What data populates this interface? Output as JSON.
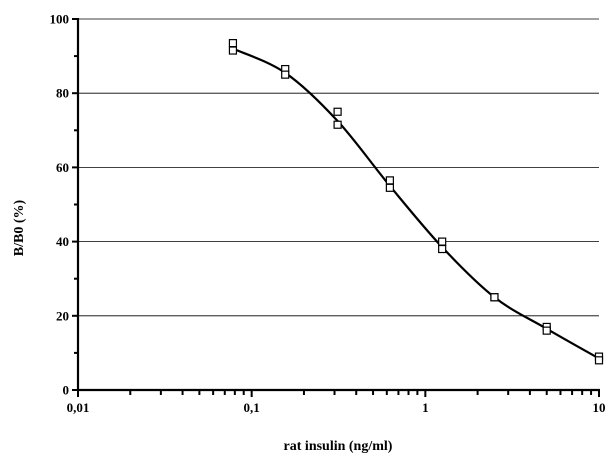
{
  "chart_data": {
    "type": "scatter",
    "title": "",
    "xlabel": "rat insulin (ng/ml)",
    "ylabel": "B/B0 (%)",
    "x_scale": "log",
    "xlim": [
      0.01,
      10
    ],
    "ylim": [
      0,
      100
    ],
    "x_tick_labels": [
      {
        "value": 0.01,
        "label": "0,01"
      },
      {
        "value": 0.1,
        "label": "0,1"
      },
      {
        "value": 1,
        "label": "1"
      },
      {
        "value": 10,
        "label": "10"
      }
    ],
    "y_tick_labels": [
      {
        "value": 0,
        "label": "0"
      },
      {
        "value": 20,
        "label": "20"
      },
      {
        "value": 40,
        "label": "40"
      },
      {
        "value": 60,
        "label": "60"
      },
      {
        "value": 80,
        "label": "80"
      },
      {
        "value": 100,
        "label": "100"
      }
    ],
    "grid": "horizontal major lines",
    "legend": "none",
    "series": [
      {
        "marker": "open-square",
        "line": "smooth curve through means",
        "color": "#000000",
        "points": [
          {
            "x": 0.078,
            "y": 93.5
          },
          {
            "x": 0.078,
            "y": 91.5
          },
          {
            "x": 0.156,
            "y": 86.5
          },
          {
            "x": 0.156,
            "y": 85.0
          },
          {
            "x": 0.3125,
            "y": 75.0
          },
          {
            "x": 0.3125,
            "y": 71.5
          },
          {
            "x": 0.625,
            "y": 56.5
          },
          {
            "x": 0.625,
            "y": 54.5
          },
          {
            "x": 1.25,
            "y": 40.0
          },
          {
            "x": 1.25,
            "y": 38.0
          },
          {
            "x": 2.5,
            "y": 25.0
          },
          {
            "x": 2.5,
            "y": 25.0
          },
          {
            "x": 5.0,
            "y": 17.0
          },
          {
            "x": 5.0,
            "y": 16.0
          },
          {
            "x": 10.0,
            "y": 9.0
          },
          {
            "x": 10.0,
            "y": 8.0
          }
        ],
        "curve": [
          {
            "x": 0.078,
            "y": 92.0
          },
          {
            "x": 0.156,
            "y": 85.5
          },
          {
            "x": 0.3125,
            "y": 72.5
          },
          {
            "x": 0.625,
            "y": 55.0
          },
          {
            "x": 1.25,
            "y": 38.5
          },
          {
            "x": 2.5,
            "y": 25.0
          },
          {
            "x": 5.0,
            "y": 16.5
          },
          {
            "x": 10.0,
            "y": 8.5
          }
        ]
      }
    ]
  }
}
